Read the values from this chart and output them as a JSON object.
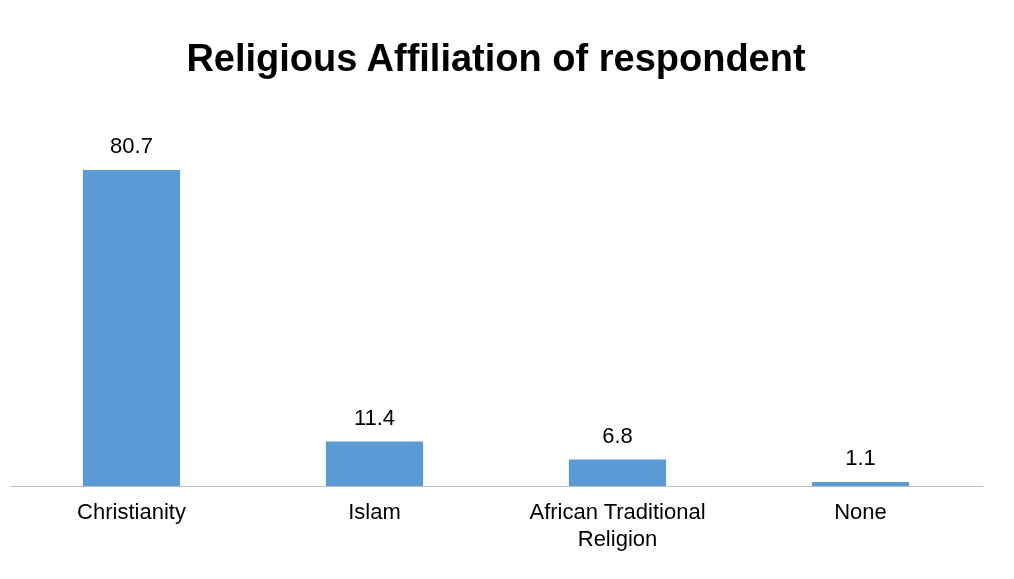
{
  "chart_data": {
    "type": "bar",
    "title": "Religious Affiliation of respondent",
    "categories": [
      "Christianity",
      "Islam",
      "African Traditional Religion",
      "None"
    ],
    "values": [
      80.7,
      11.4,
      6.8,
      1.1
    ],
    "color": "#5b9bd5",
    "data_labels": true,
    "grid": false,
    "legend": false
  }
}
